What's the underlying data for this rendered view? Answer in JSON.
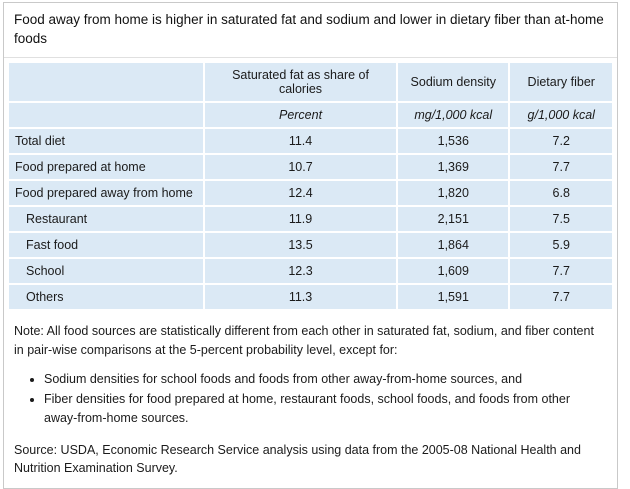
{
  "title": "Food away from home is higher in saturated fat and sodium and lower in dietary fiber than at-home foods",
  "table": {
    "columns": [
      {
        "label": "Saturated fat as share of calories",
        "unit": "Percent"
      },
      {
        "label": "Sodium density",
        "unit": "mg/1,000 kcal"
      },
      {
        "label": "Dietary fiber",
        "unit": "g/1,000 kcal"
      }
    ],
    "rows": [
      {
        "label": "Total diet",
        "indent": false,
        "values": [
          "11.4",
          "1,536",
          "7.2"
        ]
      },
      {
        "label": "Food prepared at home",
        "indent": false,
        "values": [
          "10.7",
          "1,369",
          "7.7"
        ]
      },
      {
        "label": "Food prepared away from home",
        "indent": false,
        "values": [
          "12.4",
          "1,820",
          "6.8"
        ]
      },
      {
        "label": "Restaurant",
        "indent": true,
        "values": [
          "11.9",
          "2,151",
          "7.5"
        ]
      },
      {
        "label": "Fast food",
        "indent": true,
        "values": [
          "13.5",
          "1,864",
          "5.9"
        ]
      },
      {
        "label": "School",
        "indent": true,
        "values": [
          "12.3",
          "1,609",
          "7.7"
        ]
      },
      {
        "label": "Others",
        "indent": true,
        "values": [
          "11.3",
          "1,591",
          "7.7"
        ]
      }
    ]
  },
  "note": {
    "text": "Note: All food sources are statistically different from each other in saturated fat, sodium, and fiber content in pair-wise comparisons at the 5-percent probability level, except for:",
    "bullets": [
      "Sodium densities for school foods and foods from other away-from-home sources, and",
      "Fiber densities for food prepared at home, restaurant foods, school foods, and foods from other away-from-home sources."
    ]
  },
  "source": "Source: USDA, Economic Research Service analysis using data from the 2005-08 National Health and Nutrition Examination Survey.",
  "colors": {
    "cell_background": "#dbe9f5",
    "figure_border": "#c9c9c9",
    "title_divider": "#e0e0e0",
    "text": "#1b1b1b"
  },
  "chart_data": {
    "type": "table",
    "title": "Food away from home is higher in saturated fat and sodium and lower in dietary fiber than at-home foods",
    "columns": [
      "Saturated fat as share of calories",
      "Sodium density",
      "Dietary fiber"
    ],
    "units": [
      "Percent",
      "mg/1,000 kcal",
      "g/1,000 kcal"
    ],
    "rows": [
      "Total diet",
      "Food prepared at home",
      "Food prepared away from home",
      "Restaurant",
      "Fast food",
      "School",
      "Others"
    ],
    "indented_rows": [
      "Restaurant",
      "Fast food",
      "School",
      "Others"
    ],
    "values": [
      [
        11.4,
        1536,
        7.2
      ],
      [
        10.7,
        1369,
        7.7
      ],
      [
        12.4,
        1820,
        6.8
      ],
      [
        11.9,
        2151,
        7.5
      ],
      [
        13.5,
        1864,
        5.9
      ],
      [
        12.3,
        1609,
        7.7
      ],
      [
        11.3,
        1591,
        7.7
      ]
    ],
    "note": "All food sources are statistically different from each other in saturated fat, sodium, and fiber content in pair-wise comparisons at the 5-percent probability level, except for sodium densities for school foods and foods from other away-from-home sources, and fiber densities for food prepared at home, restaurant foods, school foods, and foods from other away-from-home sources.",
    "source": "USDA, Economic Research Service analysis using data from the 2005-08 National Health and Nutrition Examination Survey."
  }
}
